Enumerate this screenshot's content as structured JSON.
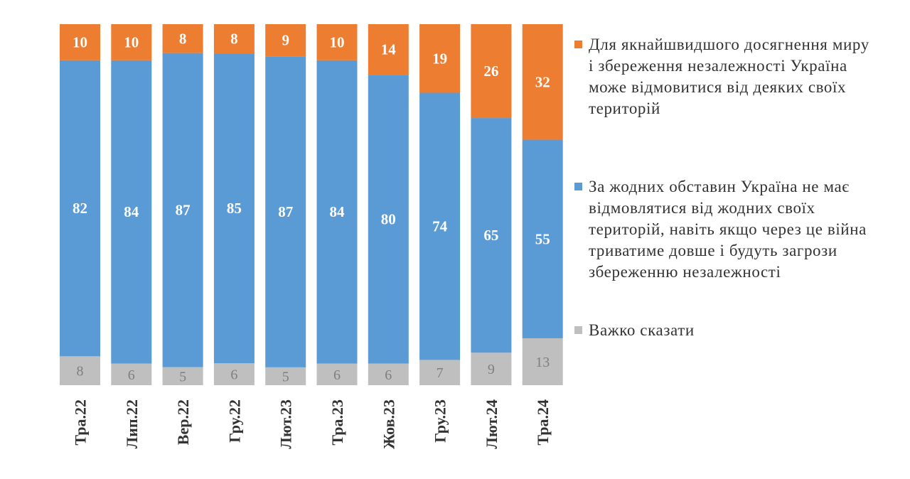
{
  "chart_data": {
    "type": "bar",
    "stacked": true,
    "orientation": "vertical",
    "categories": [
      "Тра.22",
      "Лип.22",
      "Вер.22",
      "Гру.22",
      "Лют.23",
      "Тра.23",
      "Жов.23",
      "Гру.23",
      "Лют.24",
      "Тра.24"
    ],
    "series": [
      {
        "name": "Важко сказати",
        "color": "#bfbfbf",
        "values": [
          8,
          6,
          5,
          6,
          5,
          6,
          6,
          7,
          9,
          13
        ]
      },
      {
        "name": "За жодних обставин Україна не має відмовлятися від жодних своїх територій, навіть якщо через це війна триватиме довше і будуть загрози збереженню незалежності",
        "color": "#5b9bd5",
        "values": [
          82,
          84,
          87,
          85,
          87,
          84,
          80,
          74,
          65,
          55
        ]
      },
      {
        "name": "Для якнайшвидшого досягнення миру і збереження незалежності Україна може відмовитися від деяких своїх територій",
        "color": "#ed7d31",
        "values": [
          10,
          10,
          8,
          8,
          9,
          10,
          14,
          19,
          26,
          32
        ]
      }
    ],
    "legend_position": "right",
    "legend_order": [
      2,
      1,
      0
    ],
    "data_labels": true,
    "grid": false
  }
}
